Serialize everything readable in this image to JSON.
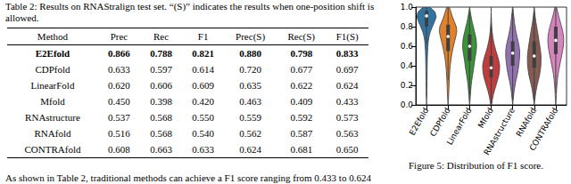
{
  "table": {
    "caption": "Table 2: Results on RNAStralign test set. “(S)” indicates the results when one-position shift is allowed.",
    "header": [
      "Method",
      "Prec",
      "Rec",
      "F1",
      "Prec(S)",
      "Rec(S)",
      "F1(S)"
    ],
    "rows": [
      [
        "E2Efold",
        "0.866",
        "0.788",
        "0.821",
        "0.880",
        "0.798",
        "0.833"
      ],
      [
        "CDPfold",
        "0.633",
        "0.597",
        "0.614",
        "0.720",
        "0.677",
        "0.697"
      ],
      [
        "LinearFold",
        "0.620",
        "0.606",
        "0.609",
        "0.635",
        "0.622",
        "0.624"
      ],
      [
        "Mfold",
        "0.450",
        "0.398",
        "0.420",
        "0.463",
        "0.409",
        "0.433"
      ],
      [
        "RNAstructure",
        "0.537",
        "0.568",
        "0.550",
        "0.559",
        "0.592",
        "0.573"
      ],
      [
        "RNAfold",
        "0.516",
        "0.568",
        "0.540",
        "0.562",
        "0.587",
        "0.563"
      ],
      [
        "CONTRAfold",
        "0.608",
        "0.663",
        "0.633",
        "0.624",
        "0.681",
        "0.650"
      ]
    ]
  },
  "figure_caption": "Figure 5: Distribution of F1 score.",
  "body_text": "As shown in Table 2, traditional methods can achieve a F1 score ranging from 0.433 to 0.624",
  "chart_data": {
    "type": "violin",
    "categories": [
      "E2Efold",
      "CDPfold",
      "LinearFold",
      "Mfold",
      "RNAstructure",
      "RNAfold",
      "CONTRAfold"
    ],
    "colors": [
      "#3274a1",
      "#e1812c",
      "#3a923a",
      "#c03d3e",
      "#9372b2",
      "#845b53",
      "#d684bd"
    ],
    "ylim": [
      0,
      1
    ],
    "yticks": [
      {
        "value": 0,
        "label": "0.0"
      },
      {
        "value": 0.2,
        "label": "0.2"
      },
      {
        "value": 0.4,
        "label": "0.4"
      },
      {
        "value": 0.6,
        "label": "0.6"
      },
      {
        "value": 0.8,
        "label": "0.8"
      },
      {
        "value": 1,
        "label": "1.0"
      }
    ],
    "grid": false,
    "density_y": [
      0,
      0.05,
      0.1,
      0.15,
      0.2,
      0.25,
      0.3,
      0.35,
      0.4,
      0.45,
      0.5,
      0.55,
      0.6,
      0.65,
      0.7,
      0.75,
      0.8,
      0.85,
      0.9,
      0.95,
      1
    ],
    "density": [
      [
        0,
        0,
        0.04,
        0.04,
        0.05,
        0.05,
        0.06,
        0.06,
        0.07,
        0.08,
        0.09,
        0.11,
        0.14,
        0.18,
        0.26,
        0.4,
        0.6,
        0.82,
        1.0,
        0.88,
        0.35
      ],
      [
        0,
        0.04,
        0.06,
        0.08,
        0.1,
        0.12,
        0.15,
        0.18,
        0.22,
        0.28,
        0.35,
        0.45,
        0.55,
        0.68,
        0.8,
        0.9,
        0.85,
        0.65,
        0.45,
        0.3,
        0.12
      ],
      [
        0,
        0.05,
        0.08,
        0.12,
        0.16,
        0.22,
        0.3,
        0.38,
        0.45,
        0.52,
        0.6,
        0.68,
        0.72,
        0.7,
        0.62,
        0.5,
        0.38,
        0.26,
        0.16,
        0.08,
        0
      ],
      [
        0.05,
        0.12,
        0.22,
        0.35,
        0.5,
        0.65,
        0.78,
        0.86,
        0.88,
        0.8,
        0.66,
        0.5,
        0.36,
        0.25,
        0.16,
        0.1,
        0.06,
        0.04,
        0.02,
        0,
        0
      ],
      [
        0,
        0.05,
        0.1,
        0.16,
        0.24,
        0.34,
        0.45,
        0.55,
        0.62,
        0.68,
        0.72,
        0.72,
        0.66,
        0.56,
        0.44,
        0.33,
        0.24,
        0.17,
        0.12,
        0.06,
        0.02
      ],
      [
        0,
        0.06,
        0.12,
        0.2,
        0.3,
        0.42,
        0.54,
        0.62,
        0.68,
        0.7,
        0.7,
        0.65,
        0.58,
        0.5,
        0.42,
        0.34,
        0.25,
        0.17,
        0.1,
        0.05,
        0
      ],
      [
        0,
        0.04,
        0.06,
        0.08,
        0.12,
        0.16,
        0.22,
        0.3,
        0.4,
        0.5,
        0.6,
        0.7,
        0.78,
        0.82,
        0.8,
        0.72,
        0.6,
        0.46,
        0.32,
        0.2,
        0.08
      ]
    ],
    "q1": [
      0.8,
      0.55,
      0.45,
      0.28,
      0.4,
      0.38,
      0.52
    ],
    "median": [
      0.91,
      0.7,
      0.6,
      0.38,
      0.53,
      0.5,
      0.66
    ],
    "q3": [
      0.96,
      0.82,
      0.72,
      0.5,
      0.65,
      0.65,
      0.8
    ],
    "whisker_low": [
      0.62,
      0.25,
      0.1,
      0.02,
      0.05,
      0.05,
      0.12
    ],
    "whisker_high": [
      1,
      1,
      0.95,
      0.82,
      0.98,
      0.95,
      1
    ]
  }
}
